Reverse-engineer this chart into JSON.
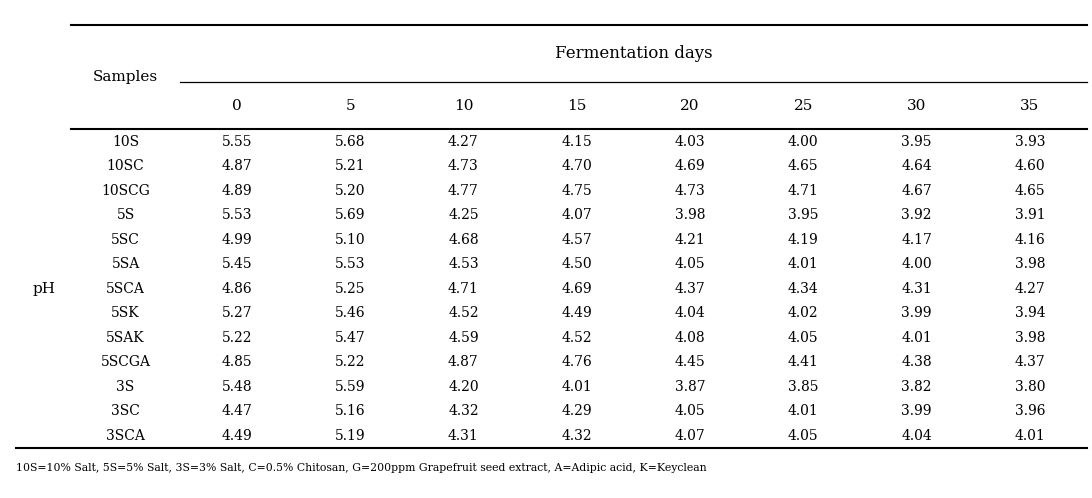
{
  "title": "Fermentation days",
  "row_label": "pH",
  "col_header_1": "Samples",
  "col_days": [
    "0",
    "5",
    "10",
    "15",
    "20",
    "25",
    "30",
    "35"
  ],
  "samples": [
    "10S",
    "10SC",
    "10SCG",
    "5S",
    "5SC",
    "5SA",
    "5SCA",
    "5SK",
    "5SAK",
    "5SCGA",
    "3S",
    "3SC",
    "3SCA"
  ],
  "data": [
    [
      5.55,
      5.68,
      4.27,
      4.15,
      4.03,
      4.0,
      3.95,
      3.93
    ],
    [
      4.87,
      5.21,
      4.73,
      4.7,
      4.69,
      4.65,
      4.64,
      4.6
    ],
    [
      4.89,
      5.2,
      4.77,
      4.75,
      4.73,
      4.71,
      4.67,
      4.65
    ],
    [
      5.53,
      5.69,
      4.25,
      4.07,
      3.98,
      3.95,
      3.92,
      3.91
    ],
    [
      4.99,
      5.1,
      4.68,
      4.57,
      4.21,
      4.19,
      4.17,
      4.16
    ],
    [
      5.45,
      5.53,
      4.53,
      4.5,
      4.05,
      4.01,
      4.0,
      3.98
    ],
    [
      4.86,
      5.25,
      4.71,
      4.69,
      4.37,
      4.34,
      4.31,
      4.27
    ],
    [
      5.27,
      5.46,
      4.52,
      4.49,
      4.04,
      4.02,
      3.99,
      3.94
    ],
    [
      5.22,
      5.47,
      4.59,
      4.52,
      4.08,
      4.05,
      4.01,
      3.98
    ],
    [
      4.85,
      5.22,
      4.87,
      4.76,
      4.45,
      4.41,
      4.38,
      4.37
    ],
    [
      5.48,
      5.59,
      4.2,
      4.01,
      3.87,
      3.85,
      3.82,
      3.8
    ],
    [
      4.47,
      5.16,
      4.32,
      4.29,
      4.05,
      4.01,
      3.99,
      3.96
    ],
    [
      4.49,
      5.19,
      4.31,
      4.32,
      4.07,
      4.05,
      4.04,
      4.01
    ]
  ],
  "footnote": "10S=10% Salt, 5S=5% Salt, 3S=3% Salt, C=0.5% Chitosan, G=200ppm Grapefruit seed extract, A=Adipic acid, K=Keyclean",
  "bg_color": "#ffffff",
  "text_color": "#000000",
  "line_color": "#000000"
}
